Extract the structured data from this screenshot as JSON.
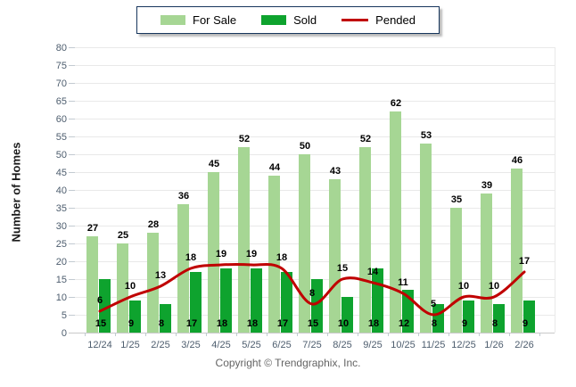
{
  "legend": {
    "items": [
      {
        "label": "For Sale",
        "marker": "swatch"
      },
      {
        "label": "Sold",
        "marker": "swatch"
      },
      {
        "label": "Pended",
        "marker": "line"
      }
    ]
  },
  "footer": {
    "copyright": "Copyright © Trendgraphix, Inc."
  },
  "chart_data": {
    "type": "bar",
    "categories": [
      "12/24",
      "1/25",
      "2/25",
      "3/25",
      "4/25",
      "5/25",
      "6/25",
      "7/25",
      "8/25",
      "9/25",
      "10/25",
      "11/25",
      "12/25",
      "1/26",
      "2/26"
    ],
    "series": [
      {
        "name": "For Sale",
        "type": "bar",
        "color": "#a6d694",
        "values": [
          27,
          25,
          28,
          36,
          45,
          52,
          44,
          50,
          43,
          52,
          62,
          53,
          35,
          39,
          46
        ]
      },
      {
        "name": "Sold",
        "type": "bar",
        "color": "#0ea32e",
        "values": [
          15,
          9,
          8,
          17,
          18,
          18,
          17,
          15,
          10,
          18,
          12,
          8,
          9,
          8,
          9
        ]
      },
      {
        "name": "Pended",
        "type": "line",
        "color": "#c00000",
        "values": [
          6,
          10,
          13,
          18,
          19,
          19,
          18,
          8,
          15,
          14,
          11,
          5,
          10,
          10,
          17
        ]
      }
    ],
    "title": "",
    "xlabel": "",
    "ylabel": "Number of Homes",
    "ylim": [
      0,
      80
    ],
    "ytick_step": 5,
    "grid": "horizontal",
    "legend_position": "top-center",
    "colors": {
      "gridline": "#e9e9e9",
      "axis_line": "#c9c9c9",
      "tick": "#c2cad1",
      "axis_text": "#4d5d6e",
      "value_label": "#000000",
      "legend_border": "#17365d"
    }
  }
}
